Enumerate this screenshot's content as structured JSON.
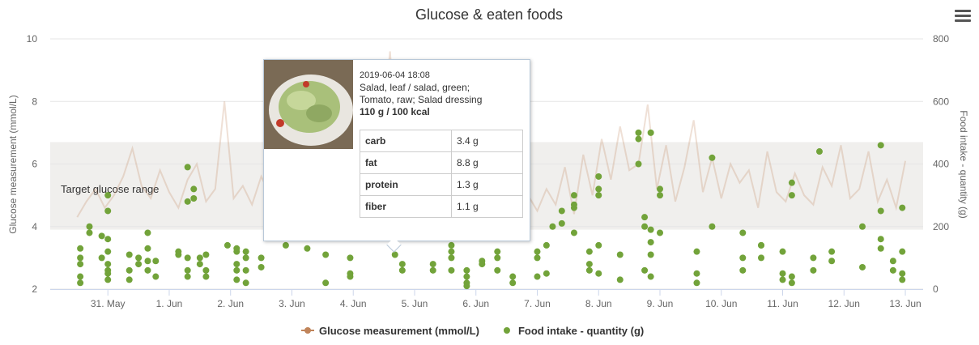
{
  "chart_data": {
    "type": "line-scatter",
    "title": "Glucose & eaten foods",
    "y_label": "Glucose measurement (mmol/L)",
    "y2_label": "Food intake - quantity (g)",
    "xlim": [
      30.06,
      44.29
    ],
    "xticks": [
      {
        "value": 31,
        "label": "31. May"
      },
      {
        "value": 32,
        "label": "1. Jun"
      },
      {
        "value": 33,
        "label": "2. Jun"
      },
      {
        "value": 34,
        "label": "3. Jun"
      },
      {
        "value": 35,
        "label": "4. Jun"
      },
      {
        "value": 36,
        "label": "5. Jun"
      },
      {
        "value": 37,
        "label": "6. Jun"
      },
      {
        "value": 38,
        "label": "7. Jun"
      },
      {
        "value": 39,
        "label": "8. Jun"
      },
      {
        "value": 40,
        "label": "9. Jun"
      },
      {
        "value": 41,
        "label": "10. Jun"
      },
      {
        "value": 42,
        "label": "11. Jun"
      },
      {
        "value": 43,
        "label": "12. Jun"
      },
      {
        "value": 44,
        "label": "13. Jun"
      }
    ],
    "ylim": [
      2,
      10
    ],
    "yticks": [
      2,
      4,
      6,
      8,
      10
    ],
    "y2lim": [
      0,
      800
    ],
    "y2ticks": [
      0,
      200,
      400,
      600,
      800
    ],
    "grid": true,
    "plot_band": {
      "from": 3.9,
      "to": 6.7,
      "label": "Target glucose range",
      "color": "#f0efed"
    },
    "series": [
      {
        "name": "Glucose measurement (mmol/L)",
        "type": "line",
        "color": "#c0845a",
        "x": [
          30.5,
          30.65,
          30.8,
          30.95,
          31.1,
          31.25,
          31.4,
          31.55,
          31.7,
          31.85,
          32.0,
          32.15,
          32.3,
          32.45,
          32.6,
          32.75,
          32.9,
          33.05,
          33.2,
          33.35,
          33.5,
          33.65,
          33.8,
          33.95,
          34.1,
          34.25,
          34.4,
          34.55,
          34.7,
          34.85,
          35.0,
          35.15,
          35.3,
          35.45,
          35.6,
          35.75,
          35.9,
          36.05,
          36.2,
          36.35,
          36.5,
          36.65,
          36.8,
          36.95,
          37.1,
          37.25,
          37.4,
          37.55,
          37.7,
          37.85,
          38.0,
          38.15,
          38.3,
          38.45,
          38.6,
          38.75,
          38.9,
          39.05,
          39.2,
          39.35,
          39.5,
          39.65,
          39.8,
          39.95,
          40.1,
          40.25,
          40.4,
          40.55,
          40.7,
          40.85,
          41.0,
          41.15,
          41.3,
          41.45,
          41.6,
          41.75,
          41.9,
          42.05,
          42.2,
          42.35,
          42.5,
          42.65,
          42.8,
          42.95,
          43.1,
          43.25,
          43.4,
          43.55,
          43.7,
          43.85,
          44.0
        ],
        "values": [
          4.3,
          4.8,
          5.2,
          4.6,
          5.0,
          5.6,
          6.5,
          5.3,
          4.9,
          5.8,
          5.1,
          4.6,
          5.5,
          6.0,
          4.8,
          5.2,
          8.0,
          4.9,
          5.3,
          4.7,
          5.6,
          5.0,
          4.5,
          5.8,
          5.2,
          4.9,
          6.2,
          5.4,
          5.0,
          4.6,
          5.1,
          4.8,
          5.5,
          6.6,
          9.6,
          5.2,
          4.9,
          5.7,
          5.0,
          4.7,
          5.3,
          6.2,
          4.8,
          5.1,
          5.8,
          4.6,
          5.4,
          4.9,
          5.6,
          5.0,
          4.5,
          5.2,
          4.7,
          5.9,
          4.4,
          6.3,
          5.0,
          6.8,
          5.5,
          7.2,
          5.8,
          6.0,
          7.9,
          5.2,
          6.6,
          4.8,
          5.9,
          7.4,
          5.1,
          6.2,
          4.9,
          6.0,
          5.4,
          5.8,
          4.6,
          6.4,
          5.1,
          4.8,
          5.7,
          5.0,
          4.7,
          5.9,
          5.3,
          6.6,
          4.9,
          5.2,
          6.4,
          4.8,
          5.5,
          4.6,
          6.1
        ]
      },
      {
        "name": "Food intake - quantity (g)",
        "type": "scatter",
        "axis": "y2",
        "color": "#72a33a",
        "x": [
          30.55,
          30.55,
          30.55,
          30.55,
          30.55,
          30.7,
          30.7,
          30.9,
          30.9,
          31.0,
          31.0,
          31.0,
          31.0,
          31.0,
          31.0,
          31.0,
          31.0,
          31.35,
          31.35,
          31.35,
          31.5,
          31.5,
          31.65,
          31.65,
          31.65,
          31.65,
          31.78,
          31.78,
          32.15,
          32.15,
          32.3,
          32.3,
          32.3,
          32.3,
          32.3,
          32.4,
          32.4,
          32.5,
          32.5,
          32.6,
          32.6,
          32.6,
          32.95,
          33.1,
          33.1,
          33.1,
          33.1,
          33.1,
          33.25,
          33.25,
          33.25,
          33.25,
          33.5,
          33.5,
          33.9,
          34.25,
          34.55,
          34.55,
          34.95,
          34.95,
          34.95,
          35.68,
          35.8,
          35.8,
          36.3,
          36.3,
          36.6,
          36.6,
          36.6,
          36.6,
          36.85,
          36.85,
          36.85,
          36.85,
          37.1,
          37.1,
          37.35,
          37.35,
          37.35,
          37.6,
          37.6,
          38.0,
          38.0,
          38.0,
          38.15,
          38.15,
          38.25,
          38.4,
          38.4,
          38.6,
          38.6,
          38.6,
          38.6,
          38.85,
          38.85,
          38.85,
          39.0,
          39.0,
          39.0,
          39.0,
          39.0,
          39.35,
          39.35,
          39.65,
          39.65,
          39.65,
          39.75,
          39.75,
          39.75,
          39.85,
          39.85,
          39.85,
          39.85,
          39.85,
          40.0,
          40.0,
          40.0,
          40.6,
          40.6,
          40.6,
          40.85,
          40.85,
          41.35,
          41.35,
          41.35,
          41.65,
          41.65,
          41.65,
          42.0,
          42.0,
          42.0,
          42.15,
          42.15,
          42.15,
          42.15,
          42.5,
          42.5,
          42.6,
          42.8,
          42.8,
          43.3,
          43.3,
          43.6,
          43.6,
          43.6,
          43.6,
          43.8,
          43.8,
          43.95,
          43.95,
          43.95,
          43.95
        ],
        "values": [
          20,
          40,
          80,
          100,
          130,
          180,
          200,
          170,
          100,
          300,
          250,
          120,
          80,
          60,
          50,
          30,
          160,
          110,
          60,
          30,
          100,
          80,
          130,
          90,
          60,
          180,
          90,
          40,
          110,
          120,
          100,
          60,
          40,
          390,
          280,
          320,
          290,
          80,
          100,
          110,
          60,
          40,
          140,
          80,
          120,
          60,
          30,
          130,
          60,
          100,
          20,
          120,
          100,
          70,
          140,
          130,
          110,
          20,
          100,
          50,
          40,
          110,
          80,
          60,
          80,
          60,
          120,
          100,
          60,
          140,
          40,
          20,
          60,
          10,
          80,
          90,
          120,
          100,
          60,
          20,
          40,
          120,
          100,
          40,
          140,
          50,
          200,
          250,
          210,
          300,
          270,
          260,
          180,
          120,
          80,
          60,
          360,
          300,
          320,
          140,
          50,
          110,
          30,
          480,
          500,
          400,
          200,
          60,
          230,
          190,
          150,
          110,
          40,
          500,
          320,
          300,
          180,
          120,
          50,
          20,
          420,
          200,
          180,
          100,
          60,
          140,
          140,
          100,
          120,
          50,
          30,
          20,
          40,
          340,
          300,
          60,
          100,
          440,
          90,
          120,
          70,
          200,
          160,
          250,
          460,
          130,
          90,
          60,
          30,
          50,
          120,
          260
        ]
      }
    ]
  },
  "tooltip": {
    "date": "2019-06-04 18:08",
    "text_lines": [
      "Salad, leaf / salad, green;",
      "Tomato, raw; Salad dressing"
    ],
    "summary": "110 g / 100 kcal",
    "nutrients": [
      [
        "carb",
        "3.4 g"
      ],
      [
        "fat",
        "8.8 g"
      ],
      [
        "protein",
        "1.3 g"
      ],
      [
        "fiber",
        "1.1 g"
      ]
    ]
  }
}
